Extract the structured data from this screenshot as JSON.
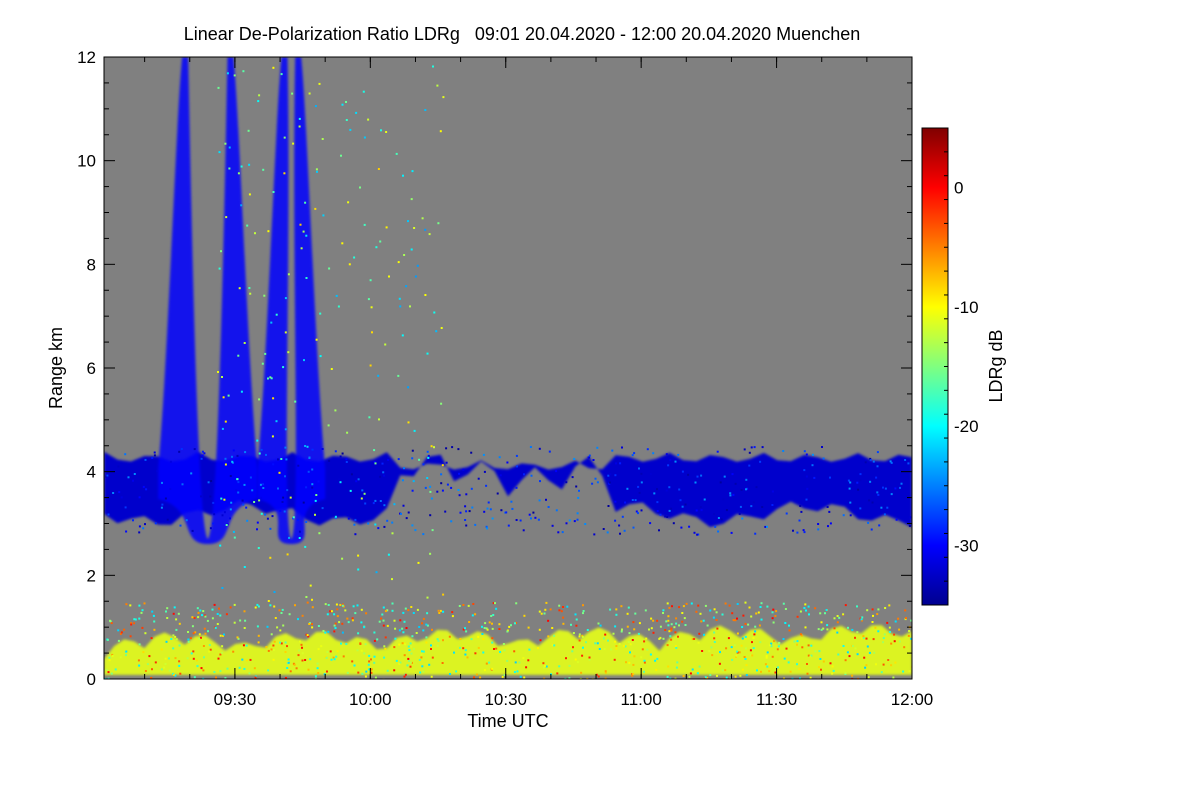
{
  "chart_data": {
    "type": "heatmap",
    "title": "Linear De-Polarization Ratio LDRg   09:01 20.04.2020 - 12:00 20.04.2020 Muenchen",
    "xlabel": "Time UTC",
    "ylabel": "Range km",
    "xlim": [
      "09:01",
      "12:00"
    ],
    "ylim": [
      0,
      12
    ],
    "x_ticks": [
      "09:30",
      "10:00",
      "10:30",
      "11:00",
      "11:30",
      "12:00"
    ],
    "y_ticks": [
      0,
      2,
      4,
      6,
      8,
      10,
      12
    ],
    "background_color": "#808080",
    "colorbar": {
      "label": "LDRg dB",
      "range": [
        -35,
        5
      ],
      "ticks": [
        0,
        -10,
        -20,
        -30
      ],
      "colormap": "jet"
    },
    "features": [
      {
        "feature": "cloud layer",
        "time_start": "09:01",
        "time_end": "12:00",
        "range_km": [
          2.8,
          4.5
        ],
        "ldr_db": -32
      },
      {
        "feature": "fall streak",
        "time_start": "09:13",
        "time_end": "09:35",
        "range_km": [
          2.7,
          12
        ],
        "ldr_db": -30
      },
      {
        "feature": "fall streak",
        "time_start": "09:35",
        "time_end": "09:50",
        "range_km": [
          2.7,
          12
        ],
        "ldr_db": -30
      },
      {
        "feature": "boundary layer",
        "time_start": "09:01",
        "time_end": "12:00",
        "range_km": [
          0,
          1.2
        ],
        "ldr_db": -11
      }
    ]
  }
}
